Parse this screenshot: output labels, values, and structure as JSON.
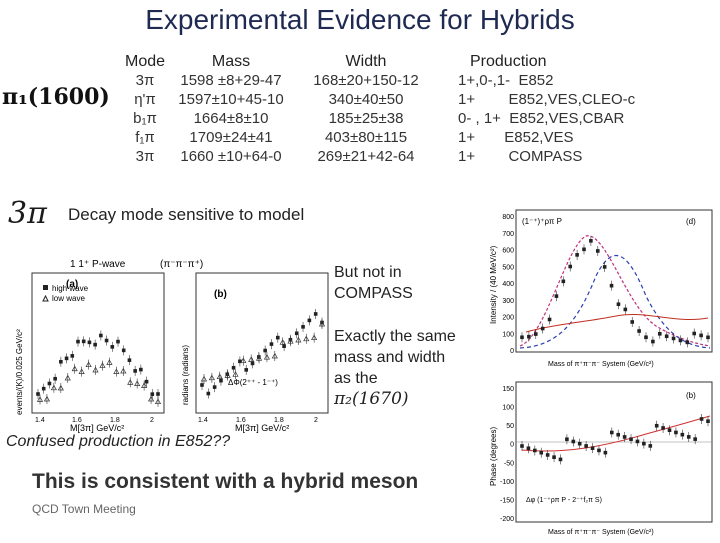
{
  "title": "Experimental Evidence for Hybrids",
  "state_label": "π₁(1600)",
  "table": {
    "headers": {
      "mode": "Mode",
      "mass": "Mass",
      "width": "Width",
      "production": "Production"
    },
    "rows": [
      {
        "mode": "3π",
        "mass": "1598 ±8+29-47",
        "width": "168±20+150-12",
        "production": "1+,0-,1-  E852"
      },
      {
        "mode": "η'π",
        "mass": "1597±10+45-10",
        "width": "340±40±50",
        "production": "1+        E852,VES,CLEO-c"
      },
      {
        "mode": "b₁π",
        "mass": "1664±8±10",
        "width": "185±25±38",
        "production": "0- , 1+  E852,VES,CBAR"
      },
      {
        "mode": "f₁π",
        "mass": "1709±24±41",
        "width": "403±80±115",
        "production": "1+       E852,VES"
      },
      {
        "mode": "3π",
        "mass": "1660 ±10+64-0",
        "width": "269±21+42-64",
        "production": "1+        COMPASS"
      }
    ]
  },
  "decay_symbol": "3π",
  "decay_text": "Decay mode sensitive to model",
  "note1": [
    "But not in",
    "COMPASS"
  ],
  "note2": [
    "Exactly the same",
    "mass and width",
    "as the"
  ],
  "note2_symbol": "π₂(1670)",
  "confused": "Confused production in E852??",
  "conclusion": "This is consistent with a hybrid meson",
  "footer": "QCD Town Meeting",
  "left_plot": {
    "heading": "1  1⁺  P-wave",
    "reaction": "(π⁻π⁻π⁺)",
    "label_a": "(a)",
    "label_b": "(b)",
    "legend_high": "high wave",
    "legend_low": "low wave",
    "ylabel_a": "events/(K)/0.025 GeV/c²",
    "ylabel_b": "radians (radians)",
    "xlabel_a": "M[3π]  GeV/c²",
    "xlabel_b": "M[3π]  GeV/c²",
    "dphi": "ΔΦ(2⁺⁺ - 1⁻⁺)",
    "xticks_a": [
      "1.4",
      "1.6",
      "1.8",
      "2"
    ],
    "xticks_b": [
      "1.4",
      "1.6",
      "1.8",
      "2"
    ]
  },
  "right_plot": {
    "heading": "(1⁻⁺)⁺ρπ P",
    "label_d": "(d)",
    "label_b": "(b)",
    "ylabel_top": "Intensity / (40 MeV/c²)",
    "xlabel_top": "Mass of π⁺π⁻π⁻ System (GeV/c²)",
    "ylabel_bot": "Phase (degrees)",
    "xlabel_bot": "Mass of π⁺π⁻π⁻ System (GeV/c²)",
    "phase_label": "Δφ (1⁻⁺ρπ P - 2⁻⁺f₂π S)",
    "yticks_top": [
      "800",
      "700",
      "600",
      "500",
      "400",
      "300",
      "200",
      "100",
      "0"
    ],
    "yticks_bot": [
      "150",
      "100",
      "50",
      "0",
      "-50",
      "-100",
      "-150",
      "-200"
    ]
  }
}
